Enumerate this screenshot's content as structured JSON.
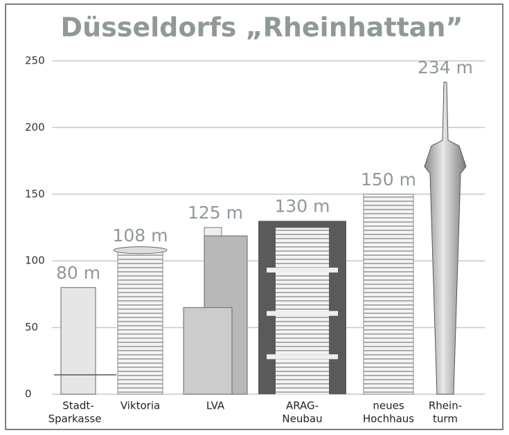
{
  "chart_data": {
    "type": "bar",
    "title": "Düsseldorfs „Rheinhattan”",
    "categories": [
      [
        "Stadt-",
        "Sparkasse"
      ],
      [
        "Viktoria"
      ],
      [
        "LVA"
      ],
      [
        "ARAG-",
        "Neubau"
      ],
      [
        "neues",
        "Hochhaus"
      ],
      [
        "Rhein-",
        "turm"
      ]
    ],
    "values": [
      80,
      108,
      125,
      130,
      150,
      234
    ],
    "value_labels": [
      "80 m",
      "108 m",
      "125 m",
      "130 m",
      "150 m",
      "234 m"
    ],
    "ylim": [
      0,
      250
    ],
    "yticks": [
      0,
      50,
      100,
      150,
      200,
      250
    ],
    "grid": true
  }
}
